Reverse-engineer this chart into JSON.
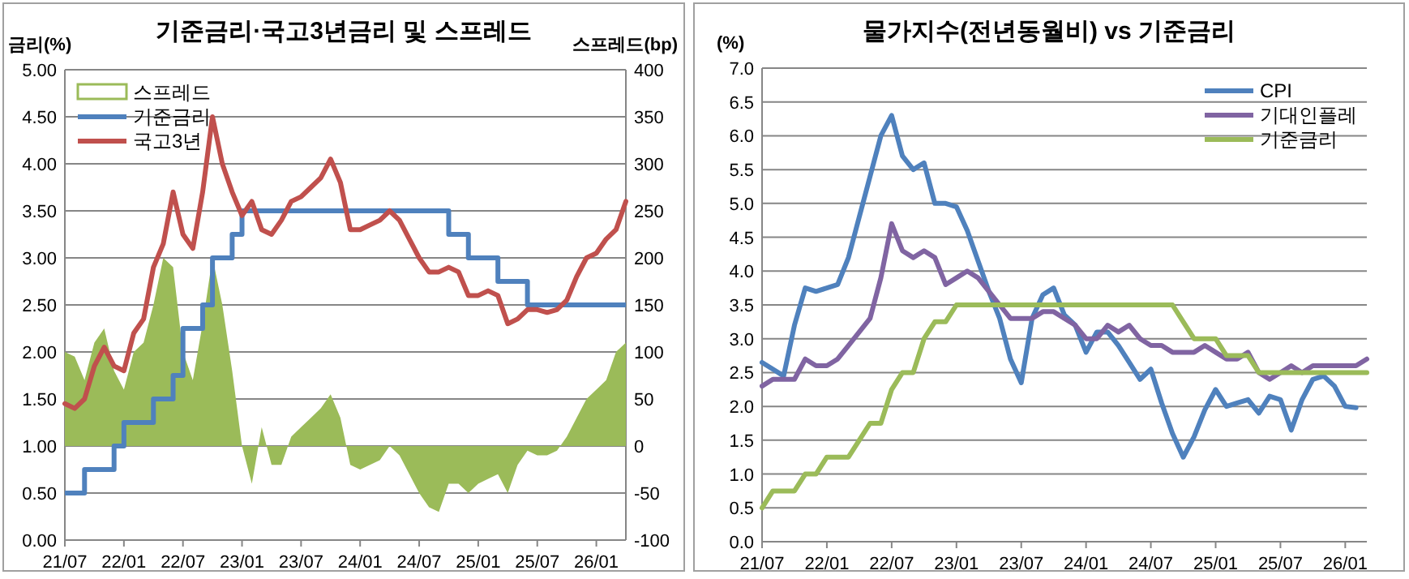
{
  "chart_data": [
    {
      "type": "line",
      "title": "기준금리·국고3년금리 및 스프레드",
      "ylabel": "금리(%)",
      "y2label": "스프레드(bp)",
      "categories": [
        "21/07",
        null,
        null,
        null,
        null,
        null,
        "22/01",
        null,
        null,
        null,
        null,
        null,
        "22/07",
        null,
        null,
        null,
        null,
        null,
        "23/01",
        null,
        null,
        null,
        null,
        null,
        "23/07",
        null,
        null,
        null,
        null,
        null,
        "24/01",
        null,
        null,
        null,
        null,
        null,
        "24/07",
        null,
        null,
        null,
        null,
        null,
        "25/01",
        null,
        null,
        null,
        null,
        null,
        "25/07",
        null,
        null,
        null,
        null,
        null,
        "26/01",
        null,
        null,
        null
      ],
      "ylim": [
        0,
        5
      ],
      "yticks": [
        {
          "value": 0,
          "label": "0.00"
        },
        {
          "value": 0.5,
          "label": "0.50"
        },
        {
          "value": 1,
          "label": "1.00"
        },
        {
          "value": 1.5,
          "label": "1.50"
        },
        {
          "value": 2,
          "label": "2.00"
        },
        {
          "value": 2.5,
          "label": "2.50"
        },
        {
          "value": 3,
          "label": "3.00"
        },
        {
          "value": 3.5,
          "label": "3.50"
        },
        {
          "value": 4,
          "label": "4.00"
        },
        {
          "value": 4.5,
          "label": "4.50"
        },
        {
          "value": 5,
          "label": "5.00"
        }
      ],
      "y2lim": [
        -100,
        400
      ],
      "y2ticks": [
        -100,
        -50,
        0,
        50,
        100,
        150,
        200,
        250,
        300,
        350,
        400
      ],
      "grid": "y",
      "legend": "top left",
      "series": [
        {
          "name": "스프레드",
          "type": "area",
          "axis": "y2",
          "color": "#9bbb59",
          "values": [
            100,
            95,
            70,
            110,
            125,
            80,
            60,
            100,
            110,
            150,
            200,
            190,
            100,
            70,
            130,
            200,
            150,
            80,
            0,
            -40,
            20,
            -20,
            -20,
            10,
            20,
            30,
            40,
            55,
            30,
            -20,
            -25,
            -20,
            -15,
            0,
            -10,
            -30,
            -50,
            -65,
            -70,
            -40,
            -40,
            -50,
            -40,
            -35,
            -30,
            -50,
            -20,
            -5,
            -10,
            -10,
            -5,
            10,
            30,
            50,
            60,
            70,
            100,
            110
          ]
        },
        {
          "name": "기준금리",
          "type": "step",
          "color": "#4f81bd",
          "values": [
            0.5,
            0.5,
            0.75,
            0.75,
            0.75,
            1.0,
            1.25,
            1.25,
            1.25,
            1.5,
            1.5,
            1.75,
            2.25,
            2.25,
            2.5,
            3.0,
            3.0,
            3.25,
            3.5,
            3.5,
            3.5,
            3.5,
            3.5,
            3.5,
            3.5,
            3.5,
            3.5,
            3.5,
            3.5,
            3.5,
            3.5,
            3.5,
            3.5,
            3.5,
            3.5,
            3.5,
            3.5,
            3.5,
            3.5,
            3.25,
            3.25,
            3.0,
            3.0,
            3.0,
            2.75,
            2.75,
            2.75,
            2.5,
            2.5,
            2.5,
            2.5,
            2.5,
            2.5,
            2.5,
            2.5,
            2.5,
            2.5,
            2.5
          ]
        },
        {
          "name": "국고3년",
          "type": "line",
          "color": "#c0504d",
          "values": [
            1.45,
            1.4,
            1.5,
            1.85,
            2.05,
            1.85,
            1.8,
            2.2,
            2.35,
            2.9,
            3.15,
            3.7,
            3.25,
            3.1,
            3.7,
            4.5,
            4.0,
            3.7,
            3.45,
            3.6,
            3.3,
            3.25,
            3.4,
            3.6,
            3.65,
            3.75,
            3.85,
            4.05,
            3.8,
            3.3,
            3.3,
            3.35,
            3.4,
            3.5,
            3.4,
            3.2,
            3.0,
            2.85,
            2.85,
            2.9,
            2.85,
            2.6,
            2.6,
            2.65,
            2.6,
            2.3,
            2.35,
            2.45,
            2.45,
            2.42,
            2.45,
            2.55,
            2.8,
            3.0,
            3.05,
            3.2,
            3.3,
            3.6
          ]
        }
      ]
    },
    {
      "type": "line",
      "title": "물가지수(전년동월비) vs 기준금리",
      "ylabel": "(%)",
      "categories": [
        "21/07",
        null,
        null,
        null,
        null,
        null,
        "22/01",
        null,
        null,
        null,
        null,
        null,
        "22/07",
        null,
        null,
        null,
        null,
        null,
        "23/01",
        null,
        null,
        null,
        null,
        null,
        "23/07",
        null,
        null,
        null,
        null,
        null,
        "24/01",
        null,
        null,
        null,
        null,
        null,
        "24/07",
        null,
        null,
        null,
        null,
        null,
        "25/01",
        null,
        null,
        null,
        null,
        null,
        "25/07",
        null,
        null,
        null,
        null,
        null,
        "26/01",
        null,
        null
      ],
      "ylim": [
        0,
        7
      ],
      "yticks": [
        {
          "value": 0,
          "label": "0.0"
        },
        {
          "value": 0.5,
          "label": "0.5"
        },
        {
          "value": 1,
          "label": "1.0"
        },
        {
          "value": 1.5,
          "label": "1.5"
        },
        {
          "value": 2,
          "label": "2.0"
        },
        {
          "value": 2.5,
          "label": "2.5"
        },
        {
          "value": 3,
          "label": "3.0"
        },
        {
          "value": 3.5,
          "label": "3.5"
        },
        {
          "value": 4,
          "label": "4.0"
        },
        {
          "value": 4.5,
          "label": "4.5"
        },
        {
          "value": 5,
          "label": "5.0"
        },
        {
          "value": 5.5,
          "label": "5.5"
        },
        {
          "value": 6,
          "label": "6.0"
        },
        {
          "value": 6.5,
          "label": "6.5"
        },
        {
          "value": 7,
          "label": "7.0"
        }
      ],
      "grid": "y",
      "legend": "top right",
      "series": [
        {
          "name": "CPI",
          "color": "#4f81bd",
          "values": [
            2.65,
            2.55,
            2.45,
            3.2,
            3.75,
            3.7,
            3.75,
            3.8,
            4.2,
            4.8,
            5.4,
            6.0,
            6.3,
            5.7,
            5.5,
            5.6,
            5.0,
            5.0,
            4.95,
            4.6,
            4.15,
            3.7,
            3.3,
            2.7,
            2.35,
            3.3,
            3.65,
            3.75,
            3.35,
            3.2,
            2.8,
            3.1,
            3.1,
            2.9,
            2.65,
            2.4,
            2.55,
            2.05,
            1.6,
            1.25,
            1.55,
            1.95,
            2.25,
            2.0,
            2.05,
            2.1,
            1.9,
            2.15,
            2.1,
            1.65,
            2.1,
            2.4,
            2.45,
            2.3,
            2.0,
            1.98,
            null
          ]
        },
        {
          "name": "기대인플레",
          "color": "#8064a2",
          "values": [
            2.3,
            2.4,
            2.4,
            2.4,
            2.7,
            2.6,
            2.6,
            2.7,
            2.9,
            3.1,
            3.3,
            3.9,
            4.7,
            4.3,
            4.2,
            4.3,
            4.2,
            3.8,
            3.9,
            4.0,
            3.9,
            3.7,
            3.5,
            3.3,
            3.3,
            3.3,
            3.4,
            3.4,
            3.3,
            3.2,
            3.0,
            3.0,
            3.2,
            3.1,
            3.2,
            3.0,
            2.9,
            2.9,
            2.8,
            2.8,
            2.8,
            2.9,
            2.8,
            2.7,
            2.7,
            2.8,
            2.5,
            2.4,
            2.5,
            2.6,
            2.5,
            2.6,
            2.6,
            2.6,
            2.6,
            2.6,
            2.7
          ]
        },
        {
          "name": "기준금리",
          "color": "#9bbb59",
          "values": [
            0.5,
            0.75,
            0.75,
            0.75,
            1.0,
            1.0,
            1.25,
            1.25,
            1.25,
            1.5,
            1.75,
            1.75,
            2.25,
            2.5,
            2.5,
            3.0,
            3.25,
            3.25,
            3.5,
            3.5,
            3.5,
            3.5,
            3.5,
            3.5,
            3.5,
            3.5,
            3.5,
            3.5,
            3.5,
            3.5,
            3.5,
            3.5,
            3.5,
            3.5,
            3.5,
            3.5,
            3.5,
            3.5,
            3.5,
            3.25,
            3.0,
            3.0,
            3.0,
            2.75,
            2.75,
            2.75,
            2.5,
            2.5,
            2.5,
            2.5,
            2.5,
            2.5,
            2.5,
            2.5,
            2.5,
            2.5,
            2.5
          ]
        }
      ]
    }
  ]
}
